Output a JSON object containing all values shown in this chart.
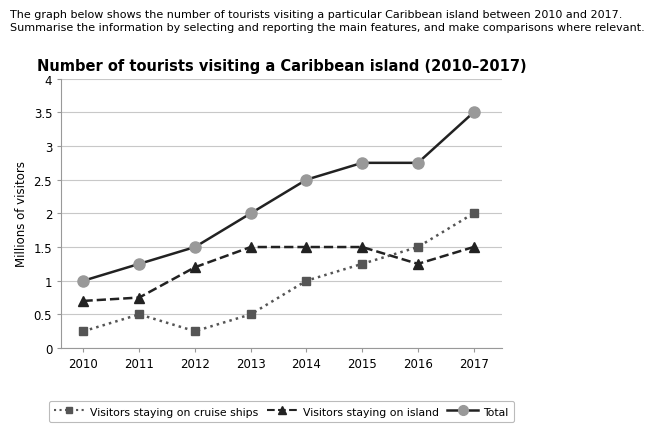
{
  "title": "Number of tourists visiting a Caribbean island (2010–2017)",
  "subtitle_line1": "The graph below shows the number of tourists visiting a particular Caribbean island between 2010 and 2017.",
  "subtitle_line2": "Summarise the information by selecting and reporting the main features, and make comparisons where relevant.",
  "ylabel": "Millions of visitors",
  "years": [
    2010,
    2011,
    2012,
    2013,
    2014,
    2015,
    2016,
    2017
  ],
  "total": [
    1.0,
    1.25,
    1.5,
    2.0,
    2.5,
    2.75,
    2.75,
    3.5
  ],
  "island": [
    0.7,
    0.75,
    1.2,
    1.5,
    1.5,
    1.5,
    1.25,
    1.5
  ],
  "cruise": [
    0.25,
    0.5,
    0.25,
    0.5,
    1.0,
    1.25,
    1.5,
    2.0
  ],
  "ylim": [
    0,
    4
  ],
  "yticks": [
    0,
    0.5,
    1.0,
    1.5,
    2.0,
    2.5,
    3.0,
    3.5,
    4.0
  ],
  "bg_color": "#ffffff",
  "grid_color": "#c8c8c8",
  "total_color": "#999999",
  "total_line_color": "#222222",
  "island_color": "#222222",
  "cruise_color": "#555555",
  "subtitle1_fontsize": 8.0,
  "subtitle2_fontsize": 8.0,
  "title_fontsize": 10.5,
  "tick_fontsize": 8.5,
  "ylabel_fontsize": 8.5
}
